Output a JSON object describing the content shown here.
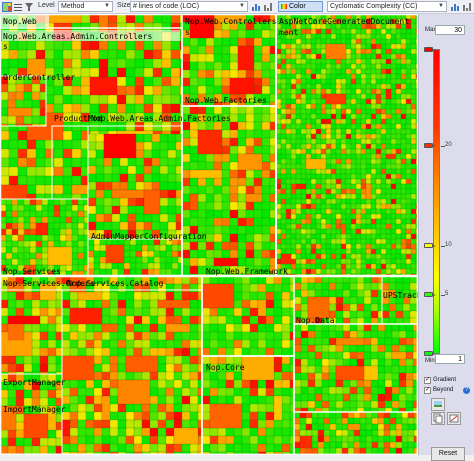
{
  "toolbar": {
    "level_label": "Level",
    "level_value": "Method",
    "size_label": "Size",
    "size_value": "# lines of code (LOC)",
    "color_label": "Color",
    "color_value": "Cyclomatic Complexity (CC)"
  },
  "treemap": {
    "labels": [
      "Nop.Web",
      "Nop.Web.Areas.Admin.Controllers",
      "Nop.Web.Controllers",
      "AspNetCoreGeneratedDocument",
      "OrderController",
      "ProductMod",
      "Nop.Web.Areas.Admin.Factories",
      "Nop.Web.Factories",
      "AdminMapperConfiguration",
      "Nop.Services",
      "Nop.Services.Orders",
      "Nop.Services.Catalog",
      "Nop.Web.Framework",
      "UPSTrack",
      "Nop.Data",
      "ExportManager",
      "ImportManager",
      "Nop.Core"
    ]
  },
  "panel": {
    "max_label": "Max",
    "max_value": "30",
    "scale_ticks": [
      "20",
      "10",
      "5"
    ],
    "min_label": "Min",
    "min_value": "1",
    "gradient_label": "Gradient",
    "gradient_checked": true,
    "beyond_label": "Beyond",
    "beyond_checked": true,
    "help_glyph": "?",
    "reset_label": "Reset"
  },
  "colors": {
    "low": "#00e000",
    "mid": "#ffff00",
    "high": "#ff0000"
  }
}
